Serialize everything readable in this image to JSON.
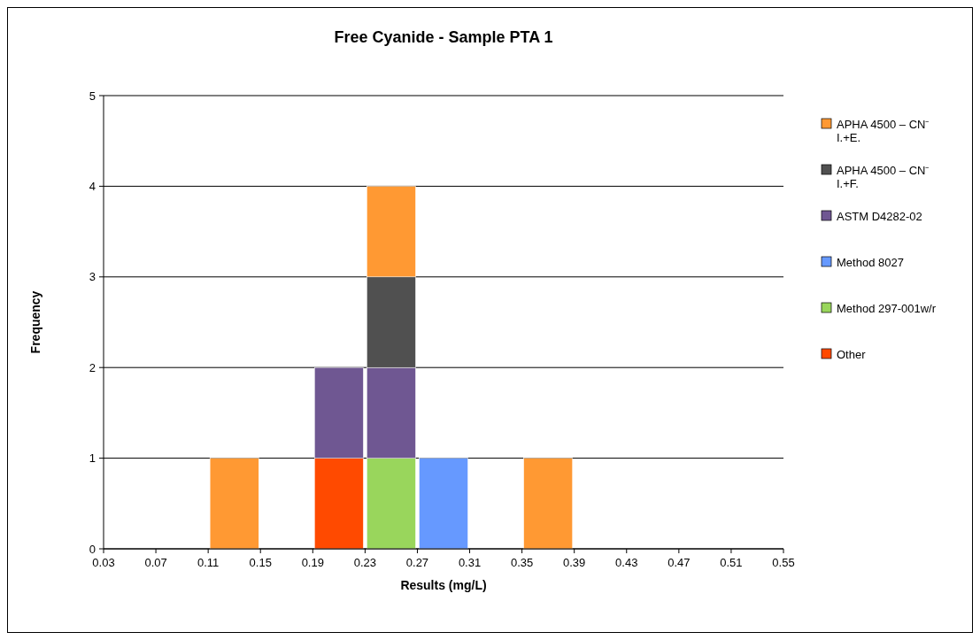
{
  "chart_data": {
    "type": "bar",
    "title": "Free Cyanide - Sample PTA 1",
    "xlabel": "Results (mg/L)",
    "ylabel": "Frequency",
    "x": [
      0.05,
      0.09,
      0.13,
      0.17,
      0.21,
      0.25,
      0.29,
      0.33,
      0.37,
      0.41,
      0.45,
      0.49,
      0.53
    ],
    "stacked": true,
    "series": [
      {
        "name": "Other",
        "color": "#ff4a00",
        "values": [
          0,
          0,
          0,
          0,
          1,
          0,
          0,
          0,
          0,
          0,
          0,
          0,
          0
        ]
      },
      {
        "name": "Method 297-001w/r",
        "color": "#99d65c",
        "values": [
          0,
          0,
          0,
          0,
          0,
          1,
          0,
          0,
          0,
          0,
          0,
          0,
          0
        ]
      },
      {
        "name": "Method 8027",
        "color": "#6699ff",
        "values": [
          0,
          0,
          0,
          0,
          0,
          0,
          1,
          0,
          0,
          0,
          0,
          0,
          0
        ]
      },
      {
        "name": "ASTM D4282-02",
        "color": "#6f5792",
        "values": [
          0,
          0,
          0,
          0,
          1,
          1,
          0,
          0,
          0,
          0,
          0,
          0,
          0
        ]
      },
      {
        "name": "APHA 4500 – CN⁻ I.+F.",
        "color": "#505050",
        "values": [
          0,
          0,
          0,
          0,
          0,
          1,
          0,
          0,
          0,
          0,
          0,
          0,
          0
        ]
      },
      {
        "name": "APHA 4500 – CN⁻ I.+E.",
        "color": "#ff9933",
        "values": [
          0,
          0,
          1,
          0,
          0,
          1,
          0,
          0,
          1,
          0,
          0,
          0,
          0
        ]
      }
    ],
    "xlim": [
      0.03,
      0.55
    ],
    "xticks": [
      0.03,
      0.07,
      0.11,
      0.15,
      0.19,
      0.23,
      0.27,
      0.31,
      0.35,
      0.39,
      0.43,
      0.47,
      0.51,
      0.55
    ],
    "ylim": [
      0,
      5
    ],
    "yticks": [
      0,
      1,
      2,
      3,
      4,
      5
    ],
    "grid": "y",
    "legend": "right"
  }
}
